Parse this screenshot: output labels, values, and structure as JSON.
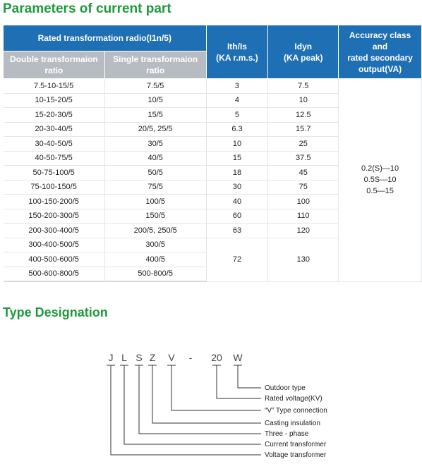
{
  "header": {
    "title": "Parameters of current part"
  },
  "table": {
    "group": "Rated transformation radio(I1n/5)",
    "sub": [
      "Double transformaion ratio",
      "Single transformaion ratio"
    ],
    "cols": [
      [
        "Ith/Is",
        "(KA r.m.s.)"
      ],
      [
        "Idyn",
        "(KA peak)"
      ],
      [
        "Accuracy class",
        "and",
        "rated secondary",
        "output(VA)"
      ]
    ],
    "rows": [
      [
        "7.5-10-15/5",
        "7.5/5",
        "3",
        "7.5"
      ],
      [
        "10-15-20/5",
        "10/5",
        "4",
        "10"
      ],
      [
        "15-20-30/5",
        "15/5",
        "5",
        "12.5"
      ],
      [
        "20-30-40/5",
        "20/5, 25/5",
        "6.3",
        "15.7"
      ],
      [
        "30-40-50/5",
        "30/5",
        "10",
        "25"
      ],
      [
        "40-50-75/5",
        "40/5",
        "15",
        "37.5"
      ],
      [
        "50-75-100/5",
        "50/5",
        "18",
        "45"
      ],
      [
        "75-100-150/5",
        "75/5",
        "30",
        "75"
      ],
      [
        "100-150-200/5",
        "100/5",
        "40",
        "100"
      ],
      [
        "150-200-300/5",
        "150/5",
        "60",
        "110"
      ],
      [
        "200-300-400/5",
        "200/5, 250/5",
        "63",
        "120"
      ],
      [
        "300-400-500/5",
        "300/5"
      ],
      [
        "400-500-600/5",
        "400/5"
      ],
      [
        "500-600-800/5",
        "500-800/5"
      ]
    ],
    "merged": [
      "72",
      "130"
    ],
    "accuracy": [
      "0.2(S)—10",
      "0.5S—10",
      "0.5—15"
    ]
  },
  "designation": {
    "title": "Type Designation",
    "code": [
      "J",
      "L",
      "S",
      "Z",
      "V",
      "-",
      "20",
      "W"
    ],
    "labels": [
      "Outdoor type",
      "Rated voltage(KV)",
      "“V” Type connection",
      "Casting insulation",
      "Three - phase",
      "Current transformer",
      "Voltage transformer"
    ]
  }
}
